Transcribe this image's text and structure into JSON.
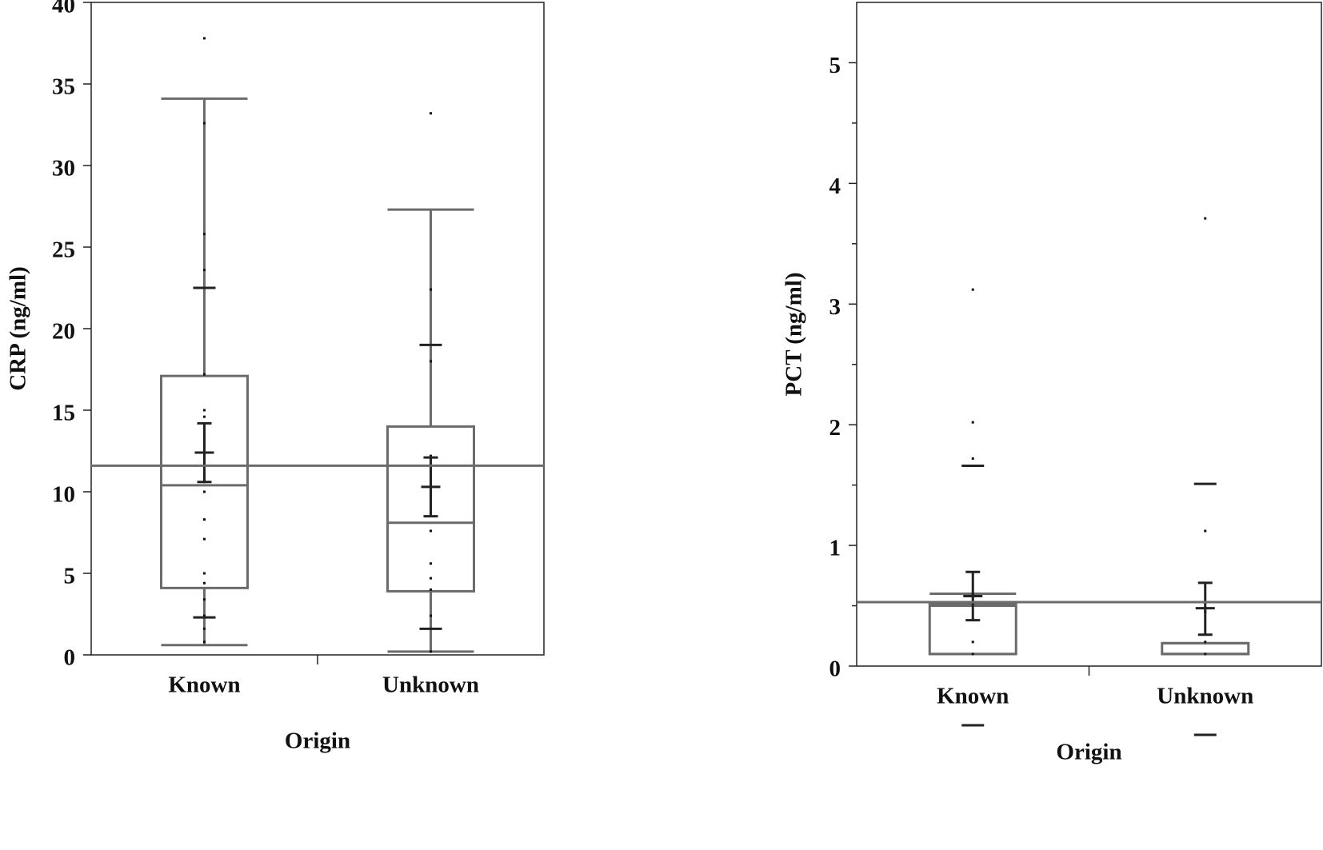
{
  "chart_data": [
    {
      "type": "box",
      "y_label": "CRP (ng/ml)",
      "x_label": "Origin",
      "categories": [
        "Known",
        "Unknown"
      ],
      "ylim": [
        0,
        40
      ],
      "yticks": [
        0,
        5,
        10,
        15,
        20,
        25,
        30,
        35,
        40
      ],
      "minor_yticks": [],
      "grand_mean": 11.6,
      "box_color": "#6b6b6b",
      "mean_color": "#222222",
      "boxes": [
        {
          "whisker_low": 0.6,
          "q1": 4.1,
          "median": 10.4,
          "q3": 17.1,
          "whisker_high": 34.1,
          "mean": 12.4,
          "ci_low": 10.6,
          "ci_high": 14.2,
          "sd_low": 2.3,
          "sd_high": 22.5,
          "points": [
            37.8,
            32.6,
            25.8,
            23.6,
            17.2,
            15.0,
            14.6,
            12.4,
            10.6,
            10.0,
            8.3,
            7.1,
            5.0,
            4.4,
            3.4,
            2.4,
            1.6,
            0.8
          ]
        },
        {
          "whisker_low": 0.2,
          "q1": 3.9,
          "median": 8.1,
          "q3": 14.0,
          "whisker_high": 27.3,
          "mean": 10.3,
          "ci_low": 8.5,
          "ci_high": 12.1,
          "sd_low": 1.6,
          "sd_high": 19.0,
          "points": [
            33.2,
            22.4,
            18.0,
            12.2,
            10.5,
            8.8,
            7.6,
            5.6,
            4.7,
            4.0,
            2.4,
            1.6,
            0.2
          ]
        }
      ]
    },
    {
      "type": "box",
      "y_label": "PCT (ng/ml)",
      "x_label": "Origin",
      "categories": [
        "Known",
        "Unknown"
      ],
      "ylim": [
        0,
        5.5
      ],
      "yticks": [
        0,
        1,
        2,
        3,
        4,
        5
      ],
      "minor_yticks": [
        0.5,
        1.5,
        2.5,
        3.5,
        4.5
      ],
      "grand_mean": 0.53,
      "box_color": "#6b6b6b",
      "mean_color": "#222222",
      "boxes": [
        {
          "whisker_low": 0.1,
          "q1": 0.1,
          "median": 0.5,
          "q3": 0.52,
          "whisker_high": 0.6,
          "mean": 0.58,
          "ci_low": 0.38,
          "ci_high": 0.78,
          "sd_low": -0.49,
          "sd_high": 1.66,
          "points": [
            3.12,
            2.02,
            1.72,
            0.6,
            0.2,
            0.1
          ]
        },
        {
          "whisker_low": 0.1,
          "q1": 0.1,
          "median": 0.1,
          "q3": 0.19,
          "whisker_high": 0.19,
          "mean": 0.48,
          "ci_low": 0.26,
          "ci_high": 0.69,
          "sd_low": -0.57,
          "sd_high": 1.51,
          "points": [
            3.71,
            1.12,
            0.45,
            0.2,
            0.1
          ]
        }
      ]
    }
  ]
}
